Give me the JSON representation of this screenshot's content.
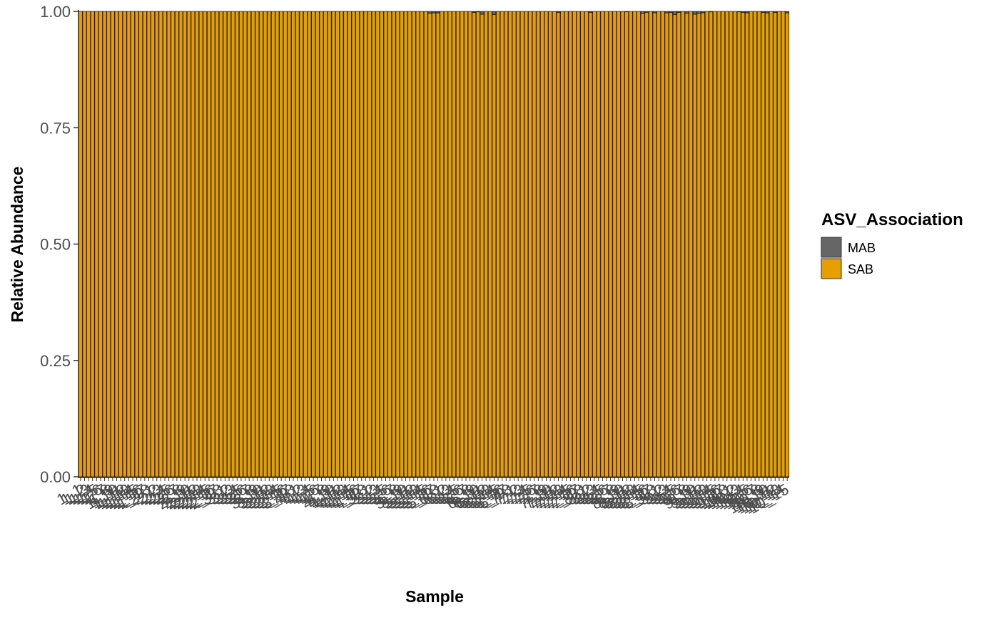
{
  "chart_data": {
    "type": "bar",
    "stacked": true,
    "title": "",
    "xlabel": "Sample",
    "ylabel": "Relative Abundance",
    "ylim": [
      0,
      1
    ],
    "y_ticks": [
      "0.00",
      "0.25",
      "0.50",
      "0.75",
      "1.00"
    ],
    "grid": false,
    "legend": {
      "title": "ASV_Association",
      "position": "right",
      "entries": [
        {
          "label": "MAB",
          "color": "#666666"
        },
        {
          "label": "SAB",
          "color": "#E69F00"
        }
      ]
    },
    "x_tick_labels_legible": false,
    "categories": [
      "1_1",
      "1_2",
      "1_3",
      "1_4",
      "1_5",
      "1_6",
      "1_7",
      "1_8",
      "1_9",
      "1_10",
      "1_11",
      "1_12",
      "1_13",
      "1_14",
      "1_15",
      "1_16",
      "1_17",
      "1_18",
      "2_1",
      "2_2",
      "2_3",
      "2_4",
      "2_5",
      "2_6",
      "2_7",
      "2_8",
      "2_9",
      "2_10",
      "2_11",
      "2_12",
      "2_13",
      "2_14",
      "2_15",
      "2_16",
      "2_17",
      "2_18",
      "3_1",
      "3_2",
      "3_3",
      "3_4",
      "3_5",
      "3_6",
      "3_7",
      "3_8",
      "3_9",
      "3_10",
      "3_11",
      "3_12",
      "3_13",
      "3_14",
      "3_15",
      "3_16",
      "3_17",
      "3_18",
      "4_1",
      "4_2",
      "4_3",
      "4_4",
      "4_5",
      "4_6",
      "4_7",
      "4_8",
      "4_9",
      "4_10",
      "4_11",
      "4_12",
      "4_13",
      "4_14",
      "4_15",
      "4_16",
      "4_17",
      "4_18",
      "5_1",
      "5_2",
      "5_3",
      "5_4",
      "5_5",
      "5_6",
      "5_7",
      "5_8",
      "5_9",
      "5_10",
      "5_11",
      "5_12",
      "5_13",
      "5_14",
      "5_15",
      "5_16",
      "5_17",
      "5_18",
      "6_1",
      "6_2",
      "6_3",
      "6_4",
      "6_5",
      "6_6",
      "6_7",
      "6_8",
      "6_9",
      "6_10",
      "6_11",
      "6_12",
      "6_13",
      "6_14",
      "6_15",
      "6_16",
      "6_17",
      "6_18",
      "7_1",
      "7_2",
      "7_3",
      "7_4",
      "7_5",
      "7_6",
      "7_7",
      "7_8",
      "7_9",
      "7_10",
      "7_11",
      "7_12",
      "7_13",
      "7_14",
      "7_15",
      "7_16",
      "7_17",
      "7_18",
      "8_1",
      "8_2",
      "8_3",
      "8_4",
      "8_5",
      "8_6",
      "8_7",
      "8_8",
      "8_9",
      "8_10",
      "8_11",
      "8_12",
      "8_13",
      "8_14",
      "8_15",
      "8_16",
      "8_17",
      "8_18",
      "9_1",
      "9_2",
      "9_3",
      "9_4",
      "9_5",
      "9_6",
      "9_7",
      "9_8",
      "9_9",
      "9_10",
      "9_11",
      "9_12",
      "9_13",
      "9_14",
      "9_15",
      "9_16",
      "9_17",
      "9_18",
      "10_1",
      "10_2",
      "10_3",
      "10_4",
      "10_5",
      "10_6",
      "10_7",
      "10_8",
      "10_9",
      "10_10",
      "10_11",
      "10_12",
      "10_13",
      "10_14",
      "10_15"
    ],
    "series": [
      {
        "name": "MAB",
        "color": "#666666",
        "values": [
          0,
          0,
          0,
          0,
          0,
          0,
          0,
          0,
          0,
          0,
          0,
          0,
          0,
          0,
          0,
          0,
          0,
          0,
          0,
          0,
          0,
          0,
          0,
          0,
          0,
          0,
          0,
          0,
          0,
          0,
          0,
          0,
          0,
          0,
          0,
          0,
          0,
          0,
          0,
          0,
          0,
          0,
          0,
          0,
          0,
          0,
          0,
          0,
          0,
          0,
          0,
          0,
          0,
          0,
          0,
          0,
          0,
          0,
          0,
          0,
          0,
          0,
          0,
          0,
          0,
          0,
          0,
          0,
          0,
          0,
          0,
          0,
          0,
          0,
          0,
          0,
          0,
          0,
          0,
          0,
          0,
          0,
          0,
          0,
          0,
          0,
          0,
          0.004,
          0.003,
          0.003,
          0,
          0,
          0,
          0,
          0,
          0,
          0,
          0,
          0.002,
          0.001,
          0.006,
          0,
          0,
          0.007,
          0,
          0,
          0,
          0,
          0,
          0,
          0,
          0,
          0,
          0,
          0,
          0,
          0,
          0,
          0,
          0.002,
          0,
          0,
          0,
          0,
          0,
          0,
          0,
          0.002,
          0,
          0,
          0,
          0,
          0,
          0,
          0,
          0,
          0.001,
          0,
          0,
          0,
          0.004,
          0.002,
          0,
          0.003,
          0,
          0,
          0.003,
          0.002,
          0.007,
          0.002,
          0,
          0.004,
          0,
          0.006,
          0.004,
          0.003,
          0,
          0.001,
          0,
          0,
          0,
          0,
          0,
          0,
          0.001,
          0.002,
          0.003,
          0,
          0,
          0,
          0.002,
          0.003,
          0,
          0.002,
          0,
          0,
          0.003
        ]
      },
      {
        "name": "SAB",
        "color": "#E69F00",
        "values": [
          1,
          1,
          1,
          1,
          1,
          1,
          1,
          1,
          1,
          1,
          1,
          1,
          1,
          1,
          1,
          1,
          1,
          1,
          1,
          1,
          1,
          1,
          1,
          1,
          1,
          1,
          1,
          1,
          1,
          1,
          1,
          1,
          1,
          1,
          1,
          1,
          1,
          1,
          1,
          1,
          1,
          1,
          1,
          1,
          1,
          1,
          1,
          1,
          1,
          1,
          1,
          1,
          1,
          1,
          1,
          1,
          1,
          1,
          1,
          1,
          1,
          1,
          1,
          1,
          1,
          1,
          1,
          1,
          1,
          1,
          1,
          1,
          1,
          1,
          1,
          1,
          1,
          1,
          1,
          1,
          1,
          1,
          1,
          1,
          1,
          1,
          1,
          0.996,
          0.997,
          0.997,
          1,
          1,
          1,
          1,
          1,
          1,
          1,
          1,
          0.998,
          0.999,
          0.994,
          1,
          1,
          0.993,
          1,
          1,
          1,
          1,
          1,
          1,
          1,
          1,
          1,
          1,
          1,
          1,
          1,
          1,
          1,
          0.998,
          1,
          1,
          1,
          1,
          1,
          1,
          1,
          0.998,
          1,
          1,
          1,
          1,
          1,
          1,
          1,
          1,
          0.999,
          1,
          1,
          1,
          0.996,
          0.998,
          1,
          0.997,
          1,
          1,
          0.997,
          0.998,
          0.993,
          0.998,
          1,
          0.996,
          1,
          0.994,
          0.996,
          0.997,
          1,
          0.999,
          1,
          1,
          1,
          1,
          1,
          1,
          0.999,
          0.998,
          0.997,
          1,
          1,
          1,
          0.998,
          0.997,
          1,
          0.998,
          1,
          1,
          0.997
        ]
      }
    ]
  }
}
